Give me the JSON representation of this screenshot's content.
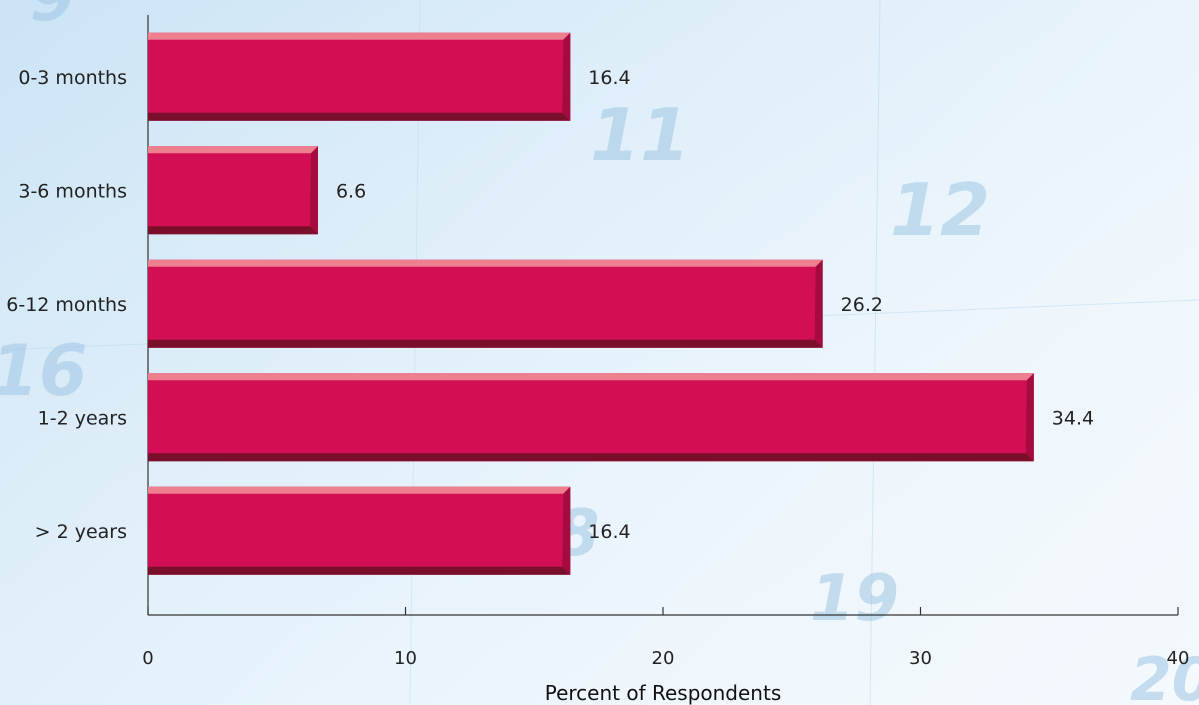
{
  "chart_data": {
    "type": "bar",
    "orientation": "horizontal",
    "categories": [
      "0-3 months",
      "3-6 months",
      "6-12 months",
      "1-2 years",
      "> 2 years"
    ],
    "values": [
      16.4,
      6.6,
      26.2,
      34.4,
      16.4
    ],
    "value_labels": [
      "16.4",
      "6.6",
      "26.2",
      "34.4",
      "16.4"
    ],
    "xlabel": "Percent of Respondents",
    "ylabel": "",
    "xlim": [
      0,
      40
    ],
    "xticks": [
      0,
      10,
      20,
      30,
      40
    ],
    "grid": false,
    "colors": {
      "bar": "#d20f55",
      "bar_top": "#ee7f8f",
      "bar_bottom": "#7a0f2c"
    }
  }
}
